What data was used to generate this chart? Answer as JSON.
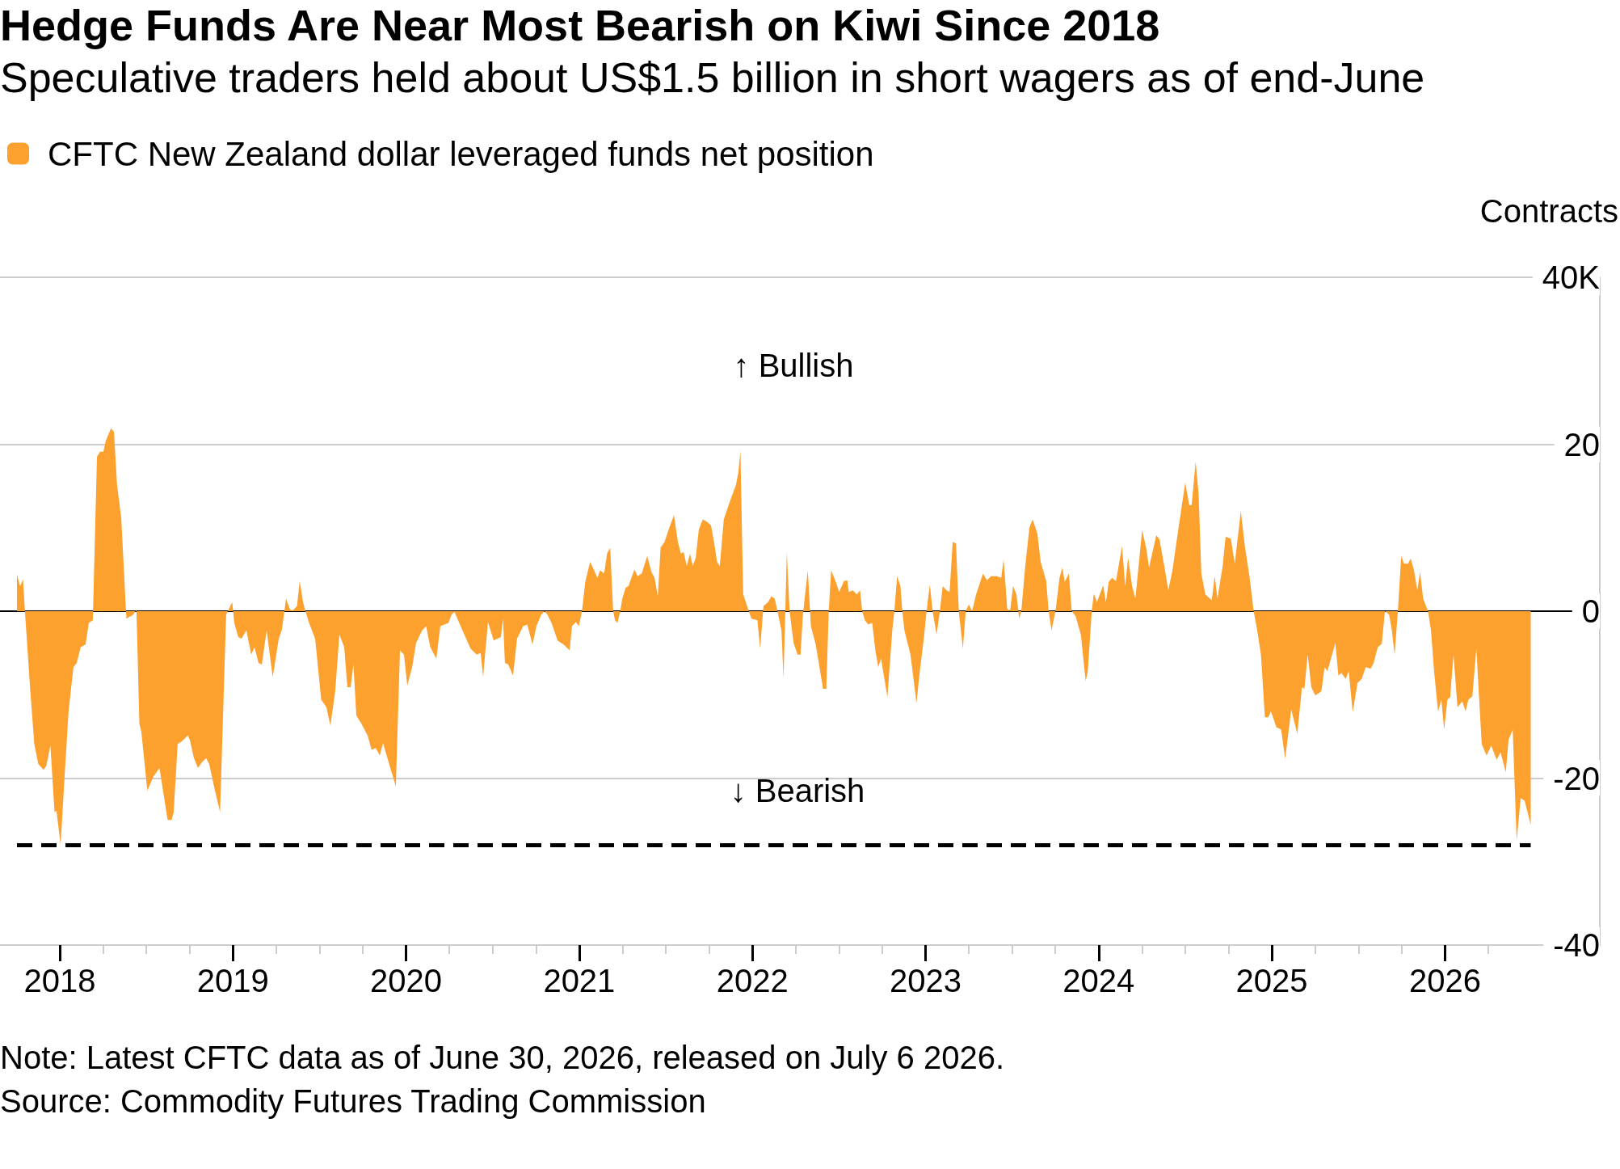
{
  "chart_data": {
    "type": "area",
    "title": "Hedge Funds Are Near Most Bearish on Kiwi Since 2018",
    "subtitle": "Speculative traders held about US$1.5 billion in short wagers as of end-June",
    "ylabel": "Contracts",
    "annotations": [
      "↑ Bullish",
      "↓ Bearish",
      "Note: Latest CFTC data as of June 30, 2026, released on July 6 2026.",
      "Source: Commodity Futures Trading Commission"
    ],
    "series": [
      {
        "name": "CFTC New Zealand dollar leveraged funds net position",
        "color": "#fca02e",
        "x": [
          2017.753,
          2017.771,
          2017.788,
          2017.799,
          2017.83,
          2017.853,
          2017.876,
          2017.907,
          2017.923,
          2017.946,
          2017.97,
          2017.981,
          2018.005,
          2018.028,
          2018.051,
          2018.079,
          2018.098,
          2018.121,
          2018.149,
          2018.168,
          2018.191,
          2018.215,
          2018.233,
          2018.252,
          2018.266,
          2018.296,
          2018.313,
          2018.331,
          2018.355,
          2018.385,
          2018.425,
          2018.443,
          2018.46,
          2018.471,
          2018.506,
          2018.541,
          2018.576,
          2018.623,
          2018.646,
          2018.658,
          2018.681,
          2018.705,
          2018.74,
          2018.751,
          2018.775,
          2018.798,
          2018.821,
          2018.845,
          2018.863,
          2018.891,
          2018.926,
          2018.961,
          2018.996,
          2019.008,
          2019.031,
          2019.05,
          2019.078,
          2019.106,
          2019.125,
          2019.148,
          2019.167,
          2019.195,
          2019.23,
          2019.265,
          2019.283,
          2019.307,
          2019.33,
          2019.346,
          2019.37,
          2019.386,
          2019.405,
          2019.419,
          2019.44,
          2019.475,
          2019.51,
          2019.54,
          2019.563,
          2019.591,
          2019.615,
          2019.643,
          2019.661,
          2019.68,
          2019.696,
          2019.713,
          2019.743,
          2019.778,
          2019.801,
          2019.825,
          2019.848,
          2019.867,
          2019.895,
          2019.941,
          2019.965,
          2019.988,
          2020.007,
          2020.035,
          2020.058,
          2020.093,
          2020.116,
          2020.14,
          2020.175,
          2020.198,
          2020.245,
          2020.263,
          2020.28,
          2020.315,
          2020.373,
          2020.408,
          2020.431,
          2020.445,
          2020.473,
          2020.506,
          2020.548,
          2020.56,
          2020.571,
          2020.59,
          2020.618,
          2020.641,
          2020.676,
          2020.7,
          2020.73,
          2020.753,
          2020.781,
          2020.8,
          2020.816,
          2020.84,
          2020.875,
          2020.91,
          2020.945,
          2020.958,
          2020.981,
          2020.998,
          2021.016,
          2021.035,
          2021.063,
          2021.086,
          2021.105,
          2021.121,
          2021.144,
          2021.161,
          2021.179,
          2021.196,
          2021.207,
          2021.221,
          2021.237,
          2021.249,
          2021.268,
          2021.284,
          2021.319,
          2021.337,
          2021.361,
          2021.393,
          2021.417,
          2021.435,
          2021.454,
          2021.47,
          2021.493,
          2021.517,
          2021.547,
          2021.57,
          2021.587,
          2021.603,
          2021.621,
          2021.64,
          2021.656,
          2021.673,
          2021.691,
          2021.714,
          2021.738,
          2021.761,
          2021.78,
          2021.796,
          2021.812,
          2021.835,
          2021.866,
          2021.905,
          2021.919,
          2021.931,
          2021.947,
          2021.975,
          2021.994,
          2022.029,
          2022.045,
          2022.064,
          2022.091,
          2022.11,
          2022.129,
          2022.145,
          2022.168,
          2022.18,
          2022.199,
          2022.215,
          2022.238,
          2022.261,
          2022.278,
          2022.292,
          2022.32,
          2022.338,
          2022.366,
          2022.378,
          2022.408,
          2022.427,
          2022.441,
          2022.455,
          2022.482,
          2022.501,
          2022.529,
          2022.548,
          2022.557,
          2022.58,
          2022.603,
          2022.622,
          2022.634,
          2022.65,
          2022.669,
          2022.692,
          2022.711,
          2022.727,
          2022.743,
          2022.78,
          2022.808,
          2022.82,
          2022.836,
          2022.855,
          2022.866,
          2022.878,
          2022.913,
          2022.948,
          2022.967,
          2022.99,
          2023.006,
          2023.025,
          2023.041,
          2023.064,
          2023.083,
          2023.099,
          2023.122,
          2023.139,
          2023.157,
          2023.176,
          2023.192,
          2023.216,
          2023.232,
          2023.25,
          2023.269,
          2023.292,
          2023.332,
          2023.355,
          2023.378,
          2023.413,
          2023.437,
          2023.451,
          2023.472,
          2023.488,
          2023.506,
          2023.525,
          2023.541,
          2023.553,
          2023.576,
          2023.6,
          2023.618,
          2023.646,
          2023.665,
          2023.697,
          2023.711,
          2023.728,
          2023.751,
          2023.774,
          2023.79,
          2023.804,
          2023.828,
          2023.844,
          2023.867,
          2023.897,
          2023.925,
          2023.937,
          2023.96,
          2023.972,
          2023.99,
          2024.026,
          2024.042,
          2024.058,
          2024.077,
          2024.1,
          2024.135,
          2024.153,
          2024.17,
          2024.193,
          2024.212,
          2024.251,
          2024.274,
          2024.291,
          2024.309,
          2024.333,
          2024.351,
          2024.379,
          2024.402,
          2024.426,
          2024.46,
          2024.5,
          2024.523,
          2024.537,
          2024.56,
          2024.577,
          2024.593,
          2024.616,
          2024.653,
          2024.67,
          2024.686,
          2024.716,
          2024.733,
          2024.763,
          2024.786,
          2024.821,
          2024.844,
          2024.872,
          2024.895,
          2024.914,
          2024.937,
          2024.96,
          2024.979,
          2024.995,
          2025.026,
          2025.054,
          2025.077,
          2025.112,
          2025.147,
          2025.174,
          2025.188,
          2025.207,
          2025.228,
          2025.251,
          2025.286,
          2025.305,
          2025.321,
          2025.367,
          2025.384,
          2025.402,
          2025.426,
          2025.444,
          2025.467,
          2025.495,
          2025.519,
          2025.542,
          2025.57,
          2025.588,
          2025.612,
          2025.635,
          2025.653,
          2025.677,
          2025.693,
          2025.709,
          2025.728,
          2025.747,
          2025.763,
          2025.786,
          2025.802,
          2025.821,
          2025.84,
          2025.856,
          2025.874,
          2025.902,
          2025.919,
          2025.937,
          2025.96,
          2025.979,
          2025.995,
          2026.014,
          2026.03,
          2026.049,
          2026.072,
          2026.1,
          2026.119,
          2026.135,
          2026.158,
          2026.181,
          2026.212,
          2026.24,
          2026.267,
          2026.298,
          2026.321,
          2026.351,
          2026.367,
          2026.391,
          2026.414,
          2026.437,
          2026.46,
          2026.495
        ],
        "values": [
          4.4,
          3.0,
          3.8,
          0,
          -9.6,
          -15.9,
          -18.3,
          -19.0,
          -18.5,
          -16.1,
          -24.1,
          -23.9,
          -28.0,
          -19.8,
          -12.0,
          -6.7,
          -6.2,
          -4.3,
          -4.0,
          -1.4,
          -1.1,
          18.5,
          19.1,
          19.1,
          20.4,
          21.9,
          21.5,
          15.1,
          11.2,
          -0.9,
          -0.4,
          0.2,
          -13.5,
          -14.4,
          -21.5,
          -19.8,
          -18.8,
          -25.0,
          -25.0,
          -24.1,
          -15.9,
          -15.6,
          -14.9,
          -15.4,
          -17.6,
          -18.8,
          -18.1,
          -17.6,
          -18.3,
          -21.0,
          -24.1,
          -0.4,
          1.1,
          -1.4,
          -3.1,
          -3.3,
          -2.3,
          -5.2,
          -4.3,
          -6.2,
          -6.4,
          -2.3,
          -7.9,
          -3.3,
          -2.2,
          1.5,
          0.2,
          0.1,
          0.6,
          3.6,
          1.1,
          0,
          -1.4,
          -3.3,
          -10.6,
          -11.5,
          -13.7,
          -9.6,
          -2.8,
          -4.3,
          -9.1,
          -9.1,
          -6.4,
          -12.5,
          -13.5,
          -14.9,
          -16.6,
          -16.4,
          -17.3,
          -15.8,
          -17.8,
          -21.0,
          -4.7,
          -5.2,
          -8.9,
          -6.7,
          -3.8,
          -2.3,
          -1.8,
          -4.3,
          -5.7,
          -1.8,
          -1.4,
          -0.4,
          -0.1,
          -1.8,
          -4.5,
          -5.2,
          -5.0,
          -7.9,
          -1.3,
          -3.5,
          -3.1,
          -0.9,
          -6.2,
          -6.4,
          -7.7,
          -3.3,
          -1.8,
          -1.6,
          -4.0,
          -1.8,
          -0.4,
          0,
          -0.4,
          -1.4,
          -3.5,
          -4.0,
          -4.7,
          -1.8,
          -1.3,
          -1.8,
          0,
          3.5,
          5.9,
          4.9,
          4.0,
          4.9,
          4.5,
          6.9,
          7.6,
          0,
          -1.1,
          -1.4,
          0,
          1.5,
          2.8,
          3.0,
          5.0,
          4.2,
          4.5,
          6.6,
          4.7,
          4.0,
          1.8,
          7.6,
          8.3,
          9.8,
          11.5,
          8.3,
          6.9,
          7.1,
          5.4,
          6.9,
          5.4,
          6.4,
          9.8,
          11.0,
          10.7,
          10.3,
          8.1,
          5.9,
          5.4,
          11.0,
          12.9,
          15.1,
          16.6,
          19.2,
          2.0,
          0.3,
          -0.9,
          -1.1,
          -4.5,
          0.6,
          1.1,
          1.8,
          1.5,
          0,
          -2.3,
          -8.1,
          7.1,
          0,
          -3.8,
          -5.2,
          -5.2,
          -0.4,
          4.9,
          -1.8,
          -4.0,
          -5.5,
          -9.3,
          -9.3,
          0,
          4.9,
          3.5,
          2.3,
          3.6,
          3.7,
          2.3,
          2.5,
          2.0,
          2.5,
          0,
          -1.1,
          -1.6,
          -1.4,
          -4.8,
          -6.7,
          -5.7,
          -10.3,
          -2.3,
          0,
          4.2,
          3.0,
          0,
          -2.3,
          -5.2,
          -11.0,
          -7.2,
          -3.3,
          0,
          3.2,
          0,
          -2.8,
          0,
          3.0,
          2.5,
          2.3,
          8.3,
          8.1,
          0,
          -4.5,
          0,
          0.8,
          0,
          2.0,
          4.5,
          3.7,
          4.2,
          4.2,
          4.0,
          6.2,
          0.3,
          0,
          3.0,
          2.0,
          -0.9,
          0,
          5.4,
          10.0,
          11.0,
          9.3,
          5.9,
          3.6,
          0,
          -2.3,
          0.1,
          4.0,
          5.2,
          3.5,
          4.5,
          0,
          -0.6,
          -2.8,
          -8.4,
          -7.2,
          0,
          2.1,
          1.1,
          3.1,
          1.1,
          3.5,
          4.0,
          3.6,
          7.8,
          3.0,
          6.4,
          3.0,
          1.5,
          9.7,
          7.6,
          5.2,
          6.9,
          9.1,
          8.6,
          5.4,
          2.5,
          4.9,
          9.8,
          15.4,
          12.7,
          12.7,
          17.9,
          14.1,
          4.5,
          2.0,
          1.3,
          4.2,
          1.5,
          5.4,
          8.9,
          8.7,
          5.7,
          12.0,
          7.8,
          4.0,
          0,
          -2.1,
          -5.2,
          -12.7,
          -12.7,
          -12.0,
          -13.9,
          -14.2,
          -17.7,
          -11.8,
          -14.7,
          -9.1,
          -9.3,
          -5.2,
          -9.1,
          -10.1,
          -9.6,
          -6.7,
          -7.2,
          -3.8,
          -7.7,
          -7.4,
          -8.1,
          -7.2,
          -12.1,
          -8.6,
          -8.1,
          -6.7,
          -6.9,
          -6.2,
          -4.3,
          -3.9,
          0,
          -0.4,
          -2.3,
          -5.2,
          0,
          6.6,
          5.7,
          5.7,
          6.3,
          4.9,
          2.5,
          4.7,
          1.5,
          0,
          -2.3,
          -7.2,
          -12.0,
          -10.6,
          -14.2,
          -10.6,
          -10.3,
          -5.2,
          -11.5,
          -10.8,
          -12.0,
          -10.6,
          -10.2,
          -4.5,
          -15.9,
          -17.3,
          -16.1,
          -17.8,
          -16.9,
          -19.3,
          -15.4,
          -14.2,
          -27.5,
          -22.4,
          -22.7,
          -25.6
        ]
      }
    ],
    "xlim": [
      2017.655,
      2026.894
    ],
    "xticks": [
      2018,
      {
        "value": 2018.25,
        "label": null
      },
      {
        "value": 2018.5,
        "label": null
      },
      {
        "value": 2018.75,
        "label": null
      },
      2019,
      {
        "value": 2019.25,
        "label": null
      },
      {
        "value": 2019.5,
        "label": null
      },
      {
        "value": 2019.75,
        "label": null
      },
      2020,
      {
        "value": 2020.25,
        "label": null
      },
      {
        "value": 2020.5,
        "label": null
      },
      {
        "value": 2020.75,
        "label": null
      },
      2021,
      {
        "value": 2021.25,
        "label": null
      },
      {
        "value": 2021.5,
        "label": null
      },
      {
        "value": 2021.75,
        "label": null
      },
      2022,
      {
        "value": 2022.25,
        "label": null
      },
      {
        "value": 2022.5,
        "label": null
      },
      {
        "value": 2022.75,
        "label": null
      },
      2023,
      {
        "value": 2023.25,
        "label": null
      },
      {
        "value": 2023.5,
        "label": null
      },
      {
        "value": 2023.75,
        "label": null
      },
      2024,
      {
        "value": 2024.25,
        "label": null
      },
      {
        "value": 2024.5,
        "label": null
      },
      {
        "value": 2024.75,
        "label": null
      },
      2025,
      {
        "value": 2025.25,
        "label": null
      },
      {
        "value": 2025.5,
        "label": null
      },
      {
        "value": 2025.75,
        "label": null
      },
      2026,
      {
        "value": 2026.25,
        "label": null
      }
    ],
    "ylim": [
      -40,
      40
    ],
    "yticks": [
      -40,
      -20,
      0,
      20,
      {
        "value": 40,
        "label": "40K"
      }
    ],
    "ref_lines": [
      {
        "axis": "y",
        "value": -28,
        "line_style": "dashed",
        "color": "#000000"
      }
    ],
    "grid": "y",
    "legend": "top left"
  }
}
